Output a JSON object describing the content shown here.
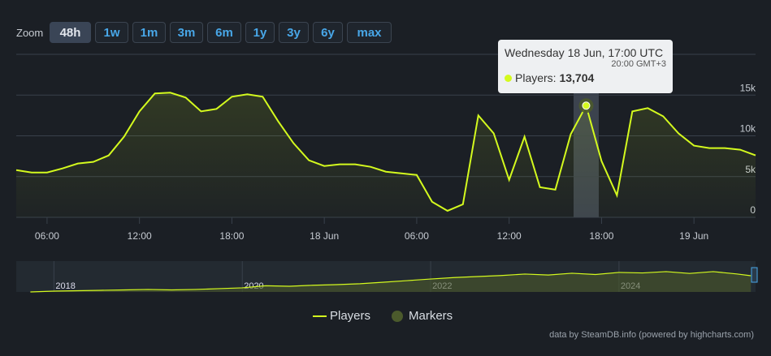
{
  "chart_data": {
    "type": "line",
    "zoom": {
      "label": "Zoom",
      "buttons": [
        "48h",
        "1w",
        "1m",
        "3m",
        "6m",
        "1y",
        "3y",
        "6y",
        "max"
      ],
      "active": 0
    },
    "x": [
      4,
      5,
      6,
      7,
      8,
      9,
      10,
      11,
      12,
      13,
      14,
      15,
      16,
      17,
      18,
      19,
      20,
      21,
      22,
      23,
      24,
      25,
      26,
      27,
      28,
      29,
      30,
      31,
      32,
      33,
      34,
      35,
      36,
      37,
      38,
      39,
      40,
      41,
      42,
      43,
      44,
      45,
      46,
      47,
      48,
      49,
      50,
      51,
      52
    ],
    "series": [
      {
        "name": "Players",
        "color": "#d4fa1e",
        "values": [
          5800,
          5500,
          5500,
          6000,
          6600,
          6800,
          7600,
          9900,
          13000,
          15200,
          15300,
          14700,
          13000,
          13300,
          14800,
          15100,
          14800,
          11800,
          9100,
          7000,
          6300,
          6500,
          6500,
          6200,
          5600,
          5400,
          5200,
          1900,
          800,
          1600,
          12500,
          10300,
          4600,
          9900,
          3700,
          3400,
          10200,
          13704,
          6900,
          2700,
          13000,
          13400,
          12400,
          10300,
          8800,
          8500,
          8500,
          8300,
          7600
        ]
      }
    ],
    "markers": {
      "name": "Markers",
      "color": "#4b5a2c"
    },
    "xlim": [
      4,
      52
    ],
    "xticks": [
      {
        "value": 6,
        "label": "06:00"
      },
      {
        "value": 12,
        "label": "12:00"
      },
      {
        "value": 18,
        "label": "18:00"
      },
      {
        "value": 24,
        "label": "18 Jun"
      },
      {
        "value": 30,
        "label": "06:00"
      },
      {
        "value": 36,
        "label": "12:00"
      },
      {
        "value": 42,
        "label": "18:00"
      },
      {
        "value": 48,
        "label": "19 Jun"
      }
    ],
    "ylim": [
      0,
      20000
    ],
    "yticks": [
      {
        "value": 0,
        "label": "0"
      },
      {
        "value": 5000,
        "label": "5k"
      },
      {
        "value": 10000,
        "label": "10k"
      },
      {
        "value": 15000,
        "label": "15k"
      }
    ],
    "grid": true,
    "tooltip": {
      "index": 37,
      "title": "Wednesday 18 Jun, 17:00 UTC",
      "subtitle": "20:00 GMT+3",
      "label": "Players:",
      "value": "13,704"
    },
    "navigator": {
      "x": [
        2017.75,
        2018,
        2018.25,
        2018.5,
        2018.75,
        2019,
        2019.25,
        2019.5,
        2019.75,
        2020,
        2020.25,
        2020.5,
        2020.75,
        2021,
        2021.25,
        2021.5,
        2021.75,
        2022,
        2022.25,
        2022.5,
        2022.75,
        2023,
        2023.25,
        2023.5,
        2023.75,
        2024,
        2024.25,
        2024.5,
        2024.75,
        2025,
        2025.25,
        2025.4
      ],
      "values": [
        0,
        800,
        1200,
        1600,
        2000,
        2400,
        2000,
        2400,
        3200,
        4000,
        6000,
        5500,
        6500,
        7100,
        8000,
        9500,
        11000,
        12600,
        14000,
        15000,
        16000,
        17400,
        16500,
        18200,
        17000,
        19000,
        18500,
        19800,
        18000,
        19800,
        17500,
        15800
      ],
      "xlim": [
        2017.6,
        2025.45
      ],
      "ylim": [
        0,
        30000
      ],
      "xticks": [
        2018,
        2020,
        2022,
        2024
      ]
    },
    "credits": "data by SteamDB.info (powered by highcharts.com)"
  }
}
